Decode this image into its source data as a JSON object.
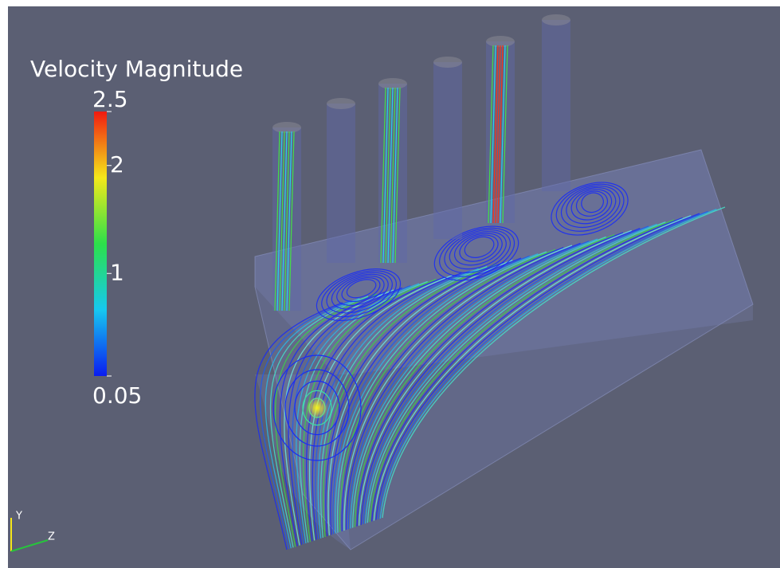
{
  "viewer": {
    "colorbar": {
      "title": "Velocity Magnitude",
      "range": [
        0.05,
        2.5
      ],
      "ticks": [
        2.5,
        2,
        1,
        0.05
      ]
    },
    "axes": {
      "y_label": "Y",
      "z_label": "Z"
    }
  }
}
